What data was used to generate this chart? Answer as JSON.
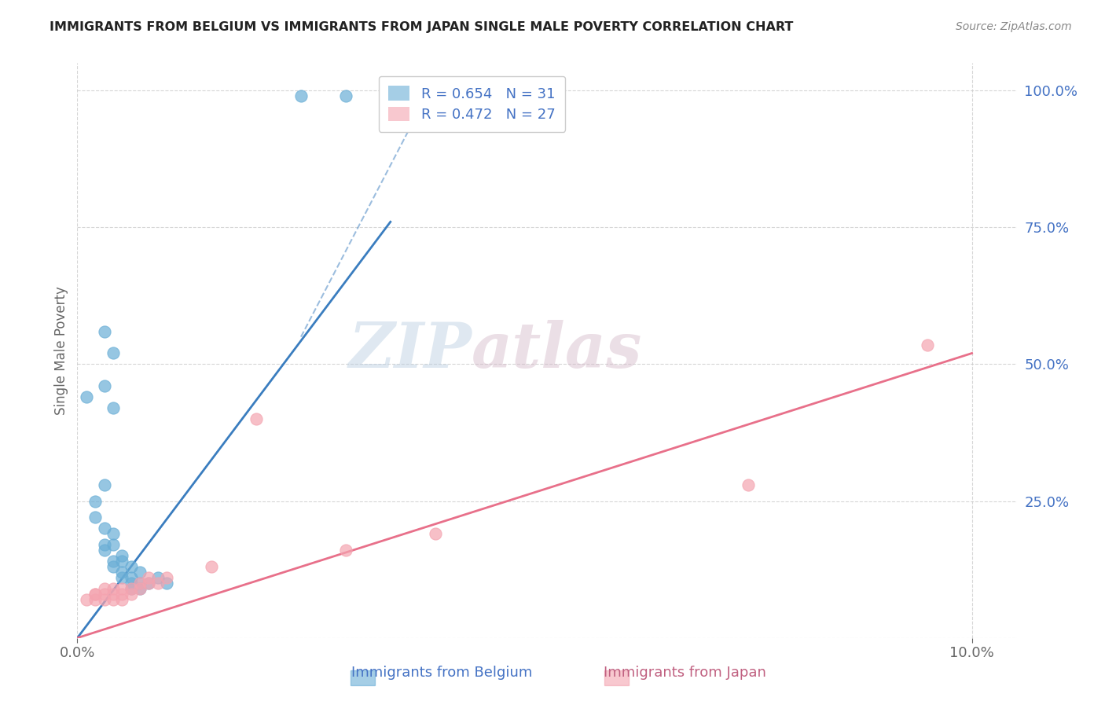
{
  "title": "IMMIGRANTS FROM BELGIUM VS IMMIGRANTS FROM JAPAN SINGLE MALE POVERTY CORRELATION CHART",
  "source": "Source: ZipAtlas.com",
  "ylabel": "Single Male Poverty",
  "watermark_zip": "ZIP",
  "watermark_atlas": "atlas",
  "belgium_R": 0.654,
  "belgium_N": 31,
  "japan_R": 0.472,
  "japan_N": 27,
  "belgium_color": "#6aaed6",
  "japan_color": "#f4a4b0",
  "belgium_line_color": "#3a7dbf",
  "japan_line_color": "#e8708a",
  "belgium_scatter": [
    [
      0.001,
      0.44
    ],
    [
      0.003,
      0.56
    ],
    [
      0.004,
      0.52
    ],
    [
      0.003,
      0.46
    ],
    [
      0.004,
      0.42
    ],
    [
      0.002,
      0.25
    ],
    [
      0.003,
      0.28
    ],
    [
      0.002,
      0.22
    ],
    [
      0.003,
      0.2
    ],
    [
      0.003,
      0.17
    ],
    [
      0.003,
      0.16
    ],
    [
      0.004,
      0.19
    ],
    [
      0.004,
      0.17
    ],
    [
      0.004,
      0.14
    ],
    [
      0.004,
      0.13
    ],
    [
      0.005,
      0.15
    ],
    [
      0.005,
      0.14
    ],
    [
      0.005,
      0.12
    ],
    [
      0.005,
      0.11
    ],
    [
      0.006,
      0.13
    ],
    [
      0.006,
      0.11
    ],
    [
      0.006,
      0.1
    ],
    [
      0.006,
      0.09
    ],
    [
      0.007,
      0.12
    ],
    [
      0.007,
      0.1
    ],
    [
      0.007,
      0.09
    ],
    [
      0.008,
      0.1
    ],
    [
      0.009,
      0.11
    ],
    [
      0.01,
      0.1
    ],
    [
      0.025,
      0.99
    ],
    [
      0.03,
      0.99
    ]
  ],
  "japan_scatter": [
    [
      0.001,
      0.07
    ],
    [
      0.002,
      0.08
    ],
    [
      0.002,
      0.07
    ],
    [
      0.002,
      0.08
    ],
    [
      0.003,
      0.09
    ],
    [
      0.003,
      0.08
    ],
    [
      0.003,
      0.07
    ],
    [
      0.004,
      0.09
    ],
    [
      0.004,
      0.08
    ],
    [
      0.004,
      0.07
    ],
    [
      0.005,
      0.09
    ],
    [
      0.005,
      0.08
    ],
    [
      0.005,
      0.07
    ],
    [
      0.006,
      0.09
    ],
    [
      0.006,
      0.08
    ],
    [
      0.007,
      0.1
    ],
    [
      0.007,
      0.09
    ],
    [
      0.008,
      0.11
    ],
    [
      0.008,
      0.1
    ],
    [
      0.009,
      0.1
    ],
    [
      0.01,
      0.11
    ],
    [
      0.015,
      0.13
    ],
    [
      0.02,
      0.4
    ],
    [
      0.03,
      0.16
    ],
    [
      0.04,
      0.19
    ],
    [
      0.075,
      0.28
    ],
    [
      0.095,
      0.535
    ]
  ],
  "belgium_trendline_solid": [
    [
      0.0,
      0.0
    ],
    [
      0.035,
      0.76
    ]
  ],
  "belgium_trendline_dashed": [
    [
      0.025,
      0.55
    ],
    [
      0.04,
      1.02
    ]
  ],
  "japan_trendline": [
    [
      0.0,
      0.0
    ],
    [
      0.1,
      0.52
    ]
  ],
  "xlim": [
    0.0,
    0.105
  ],
  "ylim": [
    0.0,
    1.05
  ],
  "yticks": [
    0.0,
    0.25,
    0.5,
    0.75,
    1.0
  ],
  "ytick_labels": [
    "",
    "25.0%",
    "50.0%",
    "75.0%",
    "100.0%"
  ],
  "xticks": [
    0.0,
    0.1
  ],
  "xtick_labels": [
    "0.0%",
    "10.0%"
  ],
  "title_color": "#222222",
  "axis_color": "#666666",
  "grid_color": "#cccccc",
  "background_color": "#ffffff",
  "tick_color": "#4472c4"
}
